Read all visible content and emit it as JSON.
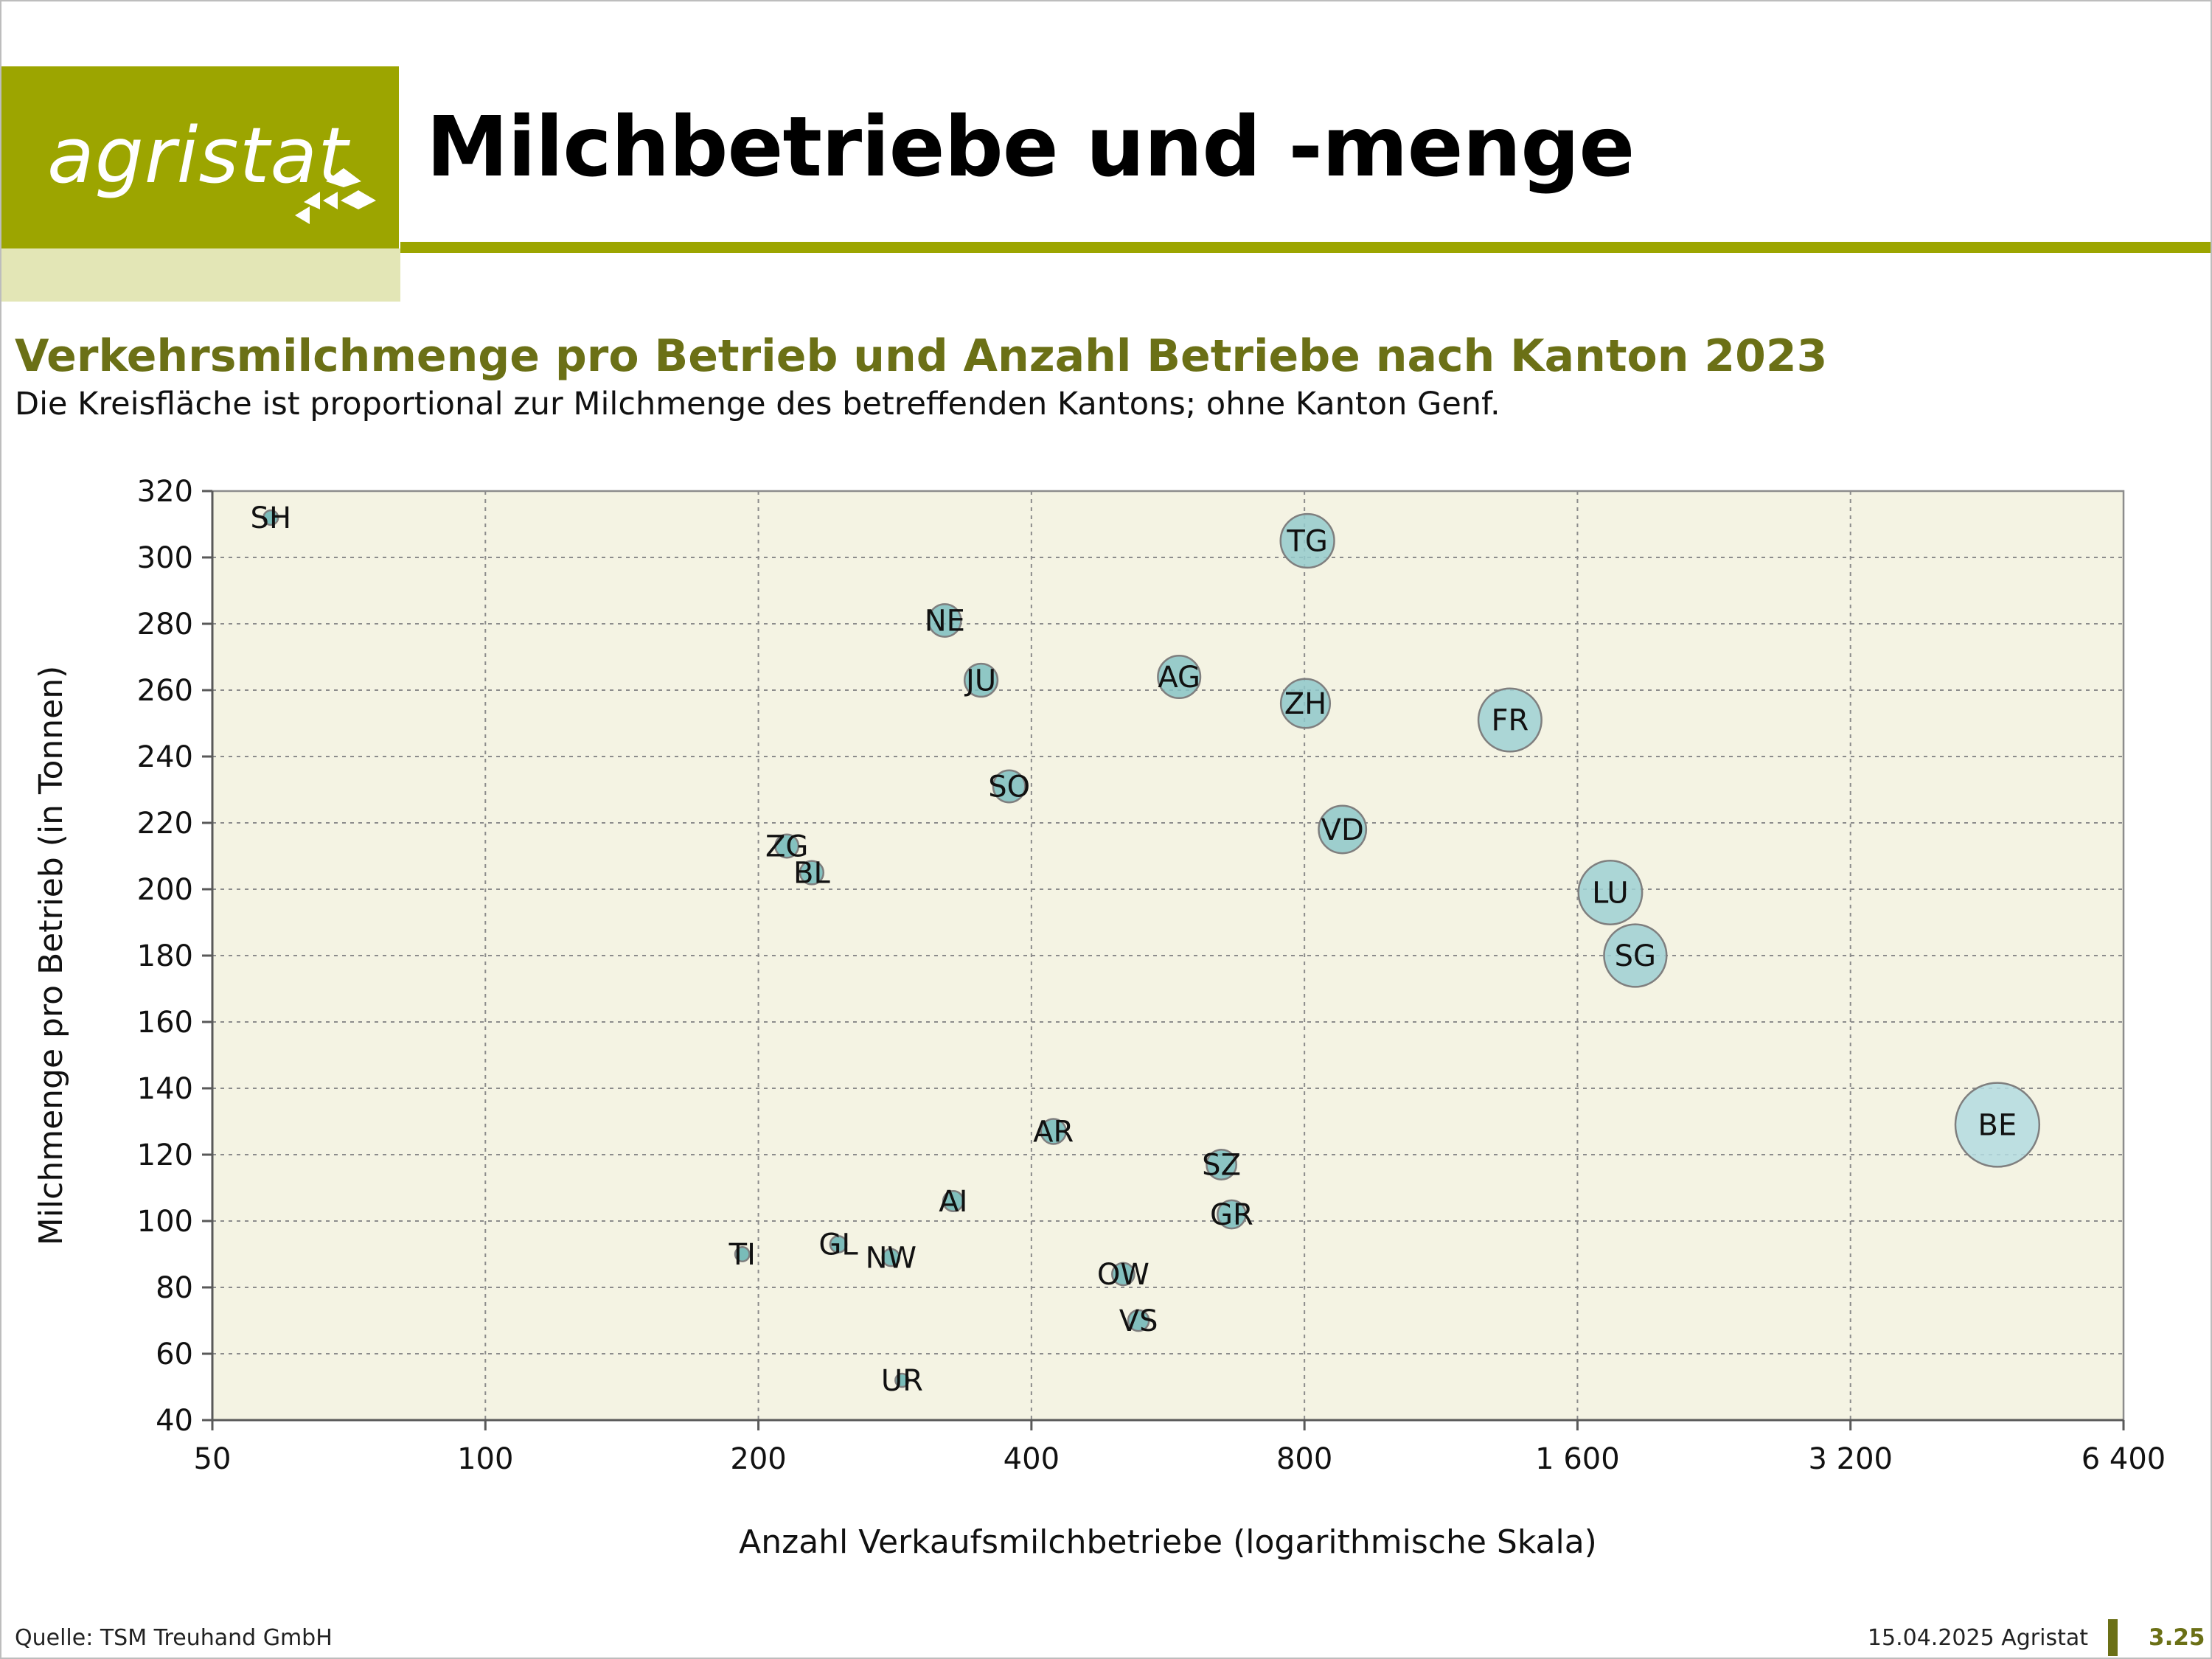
{
  "header": {
    "logo_text": "agristat",
    "title": "Milchbetriebe und -menge"
  },
  "colors": {
    "brand_olive": "#9ca500",
    "brand_pale": "#e3e6b6",
    "title_olive": "#6b7016",
    "plot_bg": "#f4f3e3",
    "bubble_dark": "#4aa3a2",
    "bubble_light": "#b3dbe0",
    "bubble_stroke": "#7f7f7f"
  },
  "chart_data": {
    "type": "scatter",
    "title": "Verkehrsmilchmenge pro Betrieb und Anzahl Betriebe nach Kanton 2023",
    "subtitle": "Die Kreisfläche ist proportional zur Milchmenge des betreffenden Kantons; ohne Kanton Genf.",
    "xlabel": "Anzahl Verkaufsmilchbetriebe (logarithmische Skala)",
    "ylabel": "Milchmenge pro Betrieb (in Tonnen)",
    "x_scale": "log",
    "xlim": [
      50,
      6400
    ],
    "ylim": [
      40,
      320
    ],
    "x_ticks": [
      50,
      100,
      200,
      400,
      800,
      1600,
      3200,
      6400
    ],
    "x_tick_labels": [
      "50",
      "100",
      "200",
      "400",
      "800",
      "1 600",
      "3 200",
      "6 400"
    ],
    "y_ticks": [
      40,
      60,
      80,
      100,
      120,
      140,
      160,
      180,
      200,
      220,
      240,
      260,
      280,
      300,
      320
    ],
    "grid": true,
    "size_encoding": "Kreisfläche proportional zur Milchmenge (Betriebe × Milchmenge pro Betrieb)",
    "points": [
      {
        "label": "SH",
        "x": 58,
        "y": 312
      },
      {
        "label": "TI",
        "x": 192,
        "y": 90
      },
      {
        "label": "ZG",
        "x": 215,
        "y": 213
      },
      {
        "label": "BL",
        "x": 229,
        "y": 205
      },
      {
        "label": "GL",
        "x": 245,
        "y": 93
      },
      {
        "label": "NW",
        "x": 280,
        "y": 89
      },
      {
        "label": "UR",
        "x": 288,
        "y": 52
      },
      {
        "label": "NE",
        "x": 321,
        "y": 281
      },
      {
        "label": "AI",
        "x": 328,
        "y": 106
      },
      {
        "label": "JU",
        "x": 352,
        "y": 263
      },
      {
        "label": "SO",
        "x": 378,
        "y": 231
      },
      {
        "label": "AR",
        "x": 423,
        "y": 127
      },
      {
        "label": "OW",
        "x": 505,
        "y": 84
      },
      {
        "label": "VS",
        "x": 525,
        "y": 70
      },
      {
        "label": "AG",
        "x": 582,
        "y": 264
      },
      {
        "label": "SZ",
        "x": 648,
        "y": 117
      },
      {
        "label": "GR",
        "x": 665,
        "y": 102
      },
      {
        "label": "TG",
        "x": 806,
        "y": 305
      },
      {
        "label": "ZH",
        "x": 802,
        "y": 256
      },
      {
        "label": "VD",
        "x": 881,
        "y": 218
      },
      {
        "label": "FR",
        "x": 1348,
        "y": 251
      },
      {
        "label": "LU",
        "x": 1739,
        "y": 199
      },
      {
        "label": "SG",
        "x": 1853,
        "y": 180
      },
      {
        "label": "BE",
        "x": 4646,
        "y": 129
      }
    ]
  },
  "footer": {
    "source": "Quelle: TSM Treuhand GmbH",
    "date": "15.04.2025 Agristat",
    "page": "3.25"
  }
}
